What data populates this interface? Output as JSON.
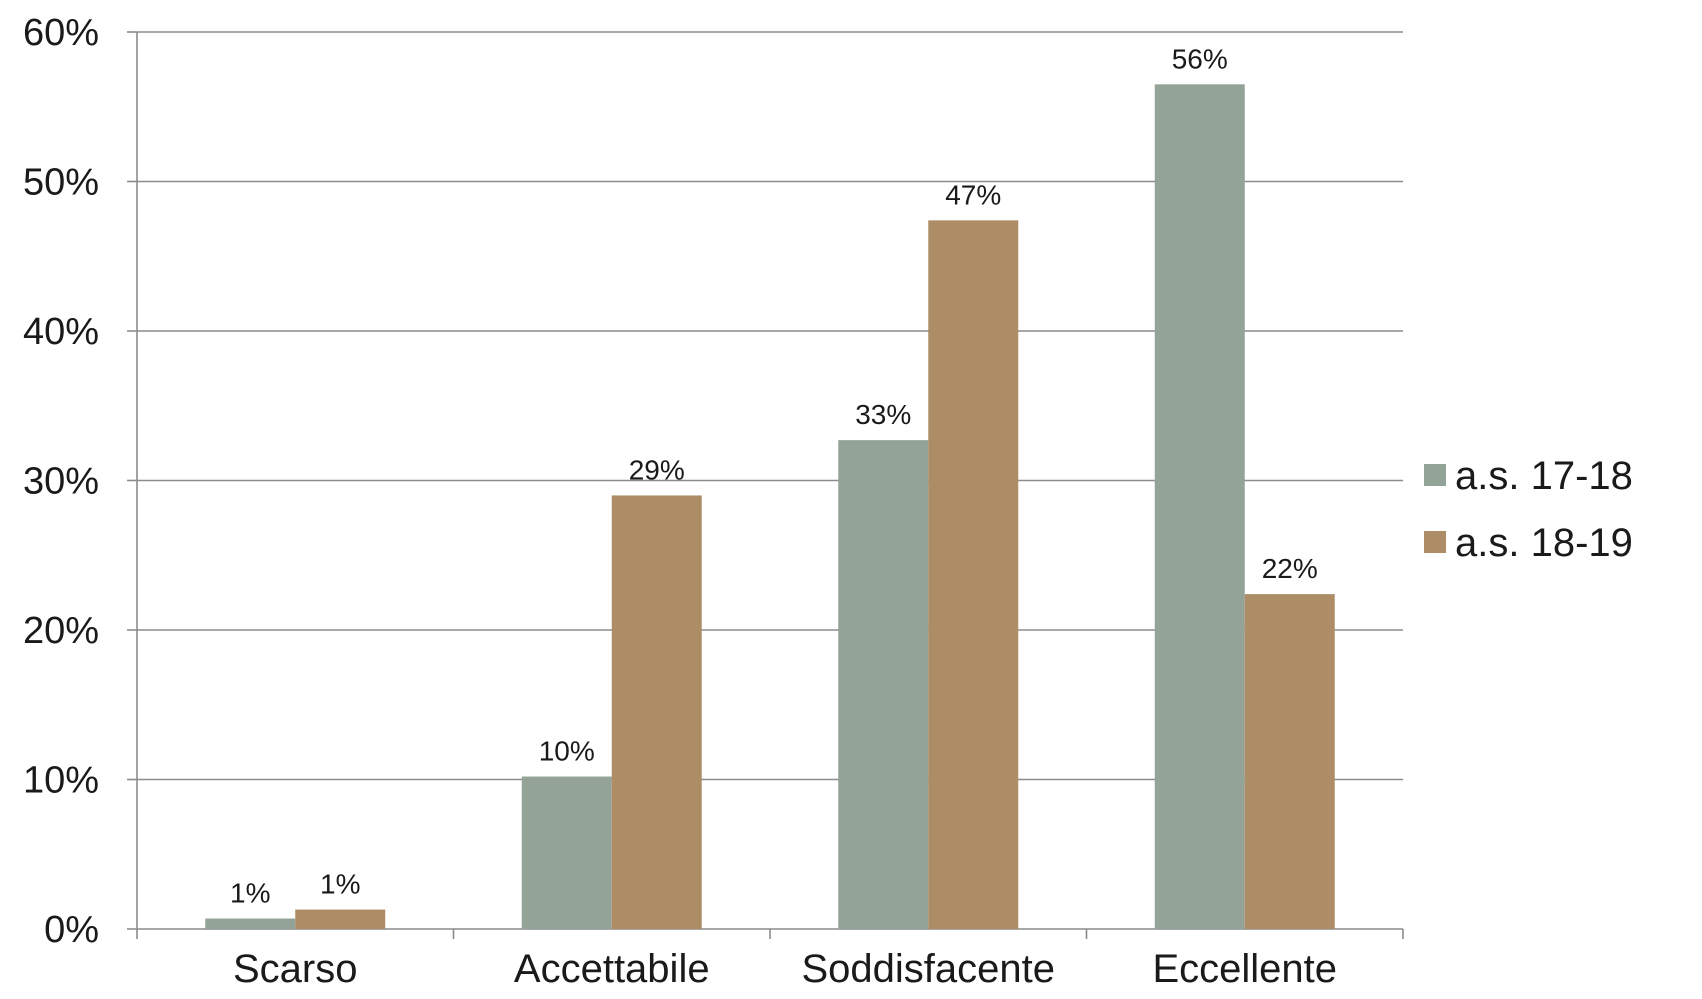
{
  "chart_data": {
    "type": "bar",
    "categories": [
      "Scarso",
      "Accettabile",
      "Soddisfacente",
      "Eccellente"
    ],
    "series": [
      {
        "name": "a.s. 17-18",
        "color": "#94a398",
        "values": [
          0.7,
          10.2,
          32.7,
          56.5
        ],
        "labels": [
          "1%",
          "10%",
          "33%",
          "56%"
        ]
      },
      {
        "name": "a.s. 18-19",
        "color": "#ad8d66",
        "values": [
          1.3,
          29.0,
          47.4,
          22.4
        ],
        "labels": [
          "1%",
          "29%",
          "47%",
          "22%"
        ]
      }
    ],
    "yticks": [
      "0%",
      "10%",
      "20%",
      "30%",
      "40%",
      "50%",
      "60%"
    ],
    "ylim": [
      0,
      60
    ],
    "ytick_values": [
      0,
      10,
      20,
      30,
      40,
      50,
      60
    ],
    "grid": true,
    "legend_position": "right",
    "title": "",
    "xlabel": "",
    "ylabel": ""
  }
}
